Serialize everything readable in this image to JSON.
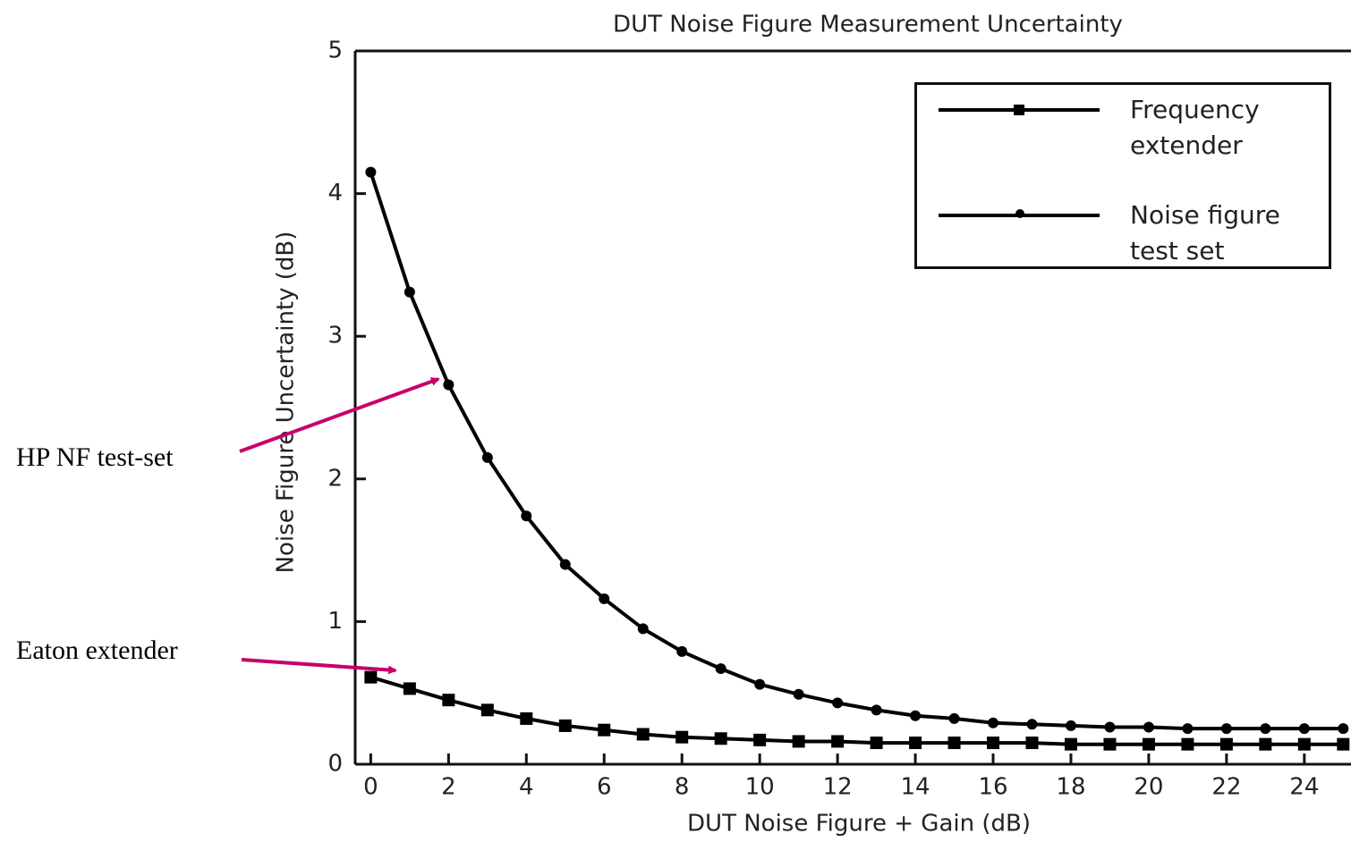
{
  "chart_data": {
    "type": "line",
    "title": "DUT Noise Figure Measurement Uncertainty",
    "xlabel": "DUT Noise Figure + Gain (dB)",
    "ylabel": "Noise Figure Uncertainty (dB)",
    "x": [
      0,
      1,
      2,
      3,
      4,
      5,
      6,
      7,
      8,
      9,
      10,
      11,
      12,
      13,
      14,
      15,
      16,
      17,
      18,
      19,
      20,
      21,
      22,
      23,
      24,
      25
    ],
    "series": [
      {
        "name": "Frequency extender",
        "color": "#000000",
        "marker": "square",
        "values": [
          0.61,
          0.53,
          0.45,
          0.38,
          0.32,
          0.27,
          0.24,
          0.21,
          0.19,
          0.18,
          0.17,
          0.16,
          0.16,
          0.15,
          0.15,
          0.15,
          0.15,
          0.15,
          0.14,
          0.14,
          0.14,
          0.14,
          0.14,
          0.14,
          0.14,
          0.14
        ]
      },
      {
        "name": "Noise figure test set",
        "color": "#000000",
        "marker": "circle",
        "values": [
          4.15,
          3.31,
          2.66,
          2.15,
          1.74,
          1.4,
          1.16,
          0.95,
          0.79,
          0.67,
          0.56,
          0.49,
          0.43,
          0.38,
          0.34,
          0.32,
          0.29,
          0.28,
          0.27,
          0.26,
          0.26,
          0.25,
          0.25,
          0.25,
          0.25,
          0.25
        ]
      }
    ],
    "xlim": [
      -0.4,
      25.2
    ],
    "ylim": [
      0,
      5
    ],
    "xticks": [
      0,
      2,
      4,
      6,
      8,
      10,
      12,
      14,
      16,
      18,
      20,
      22,
      24
    ],
    "yticks": [
      0,
      1,
      2,
      3,
      4,
      5
    ],
    "legend": "upper right",
    "annotations": [
      "HP NF test-set",
      "Eaton extender"
    ]
  }
}
